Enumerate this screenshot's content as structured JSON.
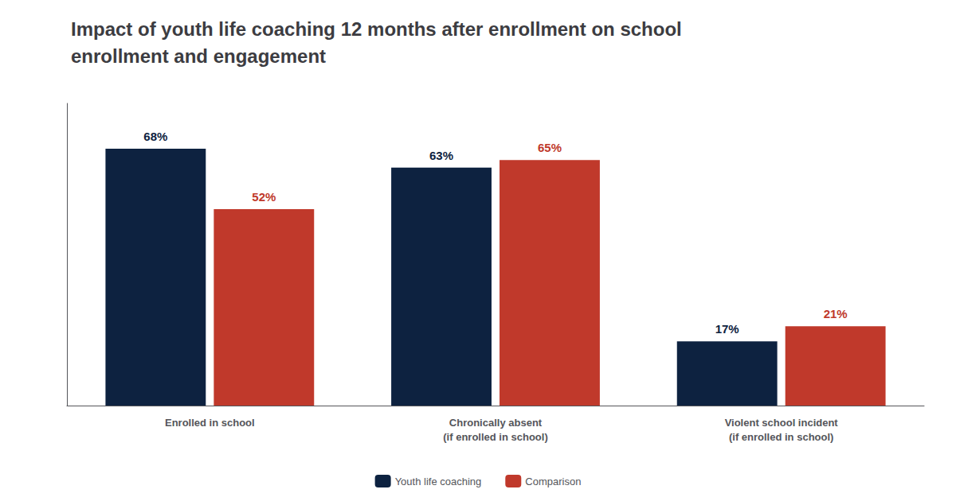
{
  "chart_data": {
    "type": "bar",
    "title": "Impact of youth life coaching 12 months after enrollment on school\nenrollment and engagement",
    "categories": [
      "Enrolled in school",
      "Chronically absent\n(if enrolled in school)",
      "Violent school incident\n(if enrolled in school)"
    ],
    "series": [
      {
        "name": "Youth life coaching",
        "color": "#0d2240",
        "values": [
          68,
          63,
          17
        ],
        "value_labels": [
          "68%",
          "63%",
          "17%"
        ]
      },
      {
        "name": "Comparison",
        "color": "#c0392b",
        "values": [
          52,
          65,
          21
        ],
        "value_labels": [
          "52%",
          "65%",
          "21%"
        ]
      }
    ],
    "ylim": [
      0,
      80
    ],
    "grid": false,
    "legend": "bottom",
    "data_labels": true,
    "tick_labels": "x"
  }
}
